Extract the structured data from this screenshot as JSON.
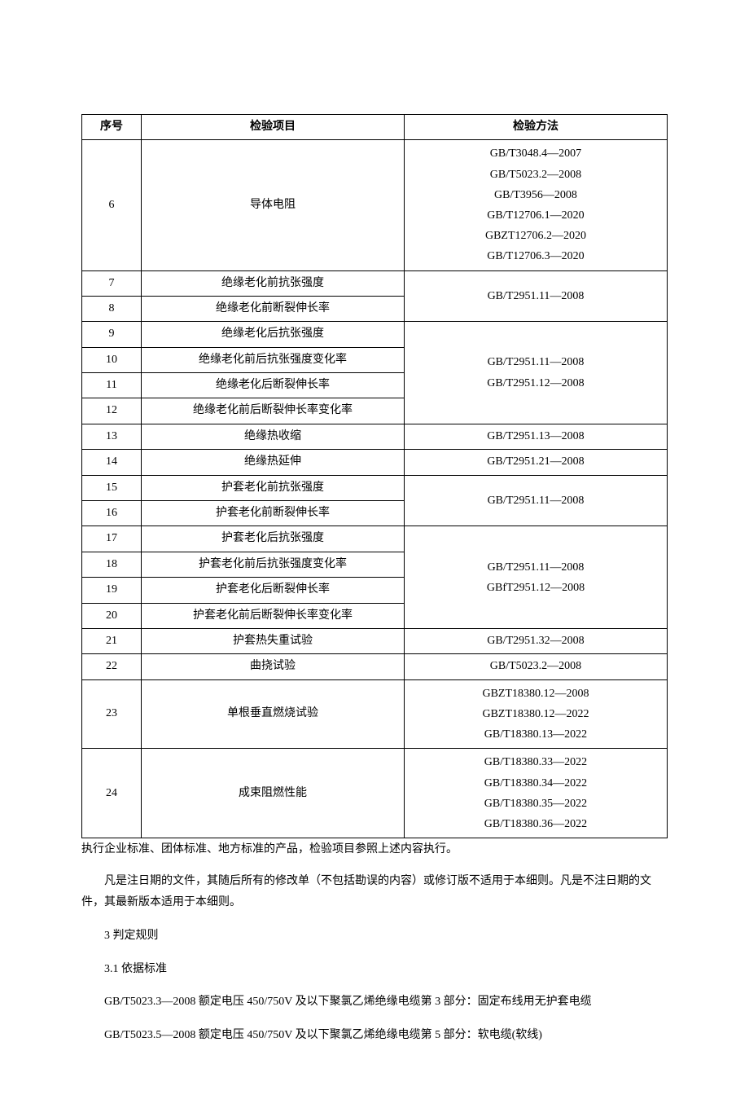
{
  "table": {
    "headers": {
      "seq": "序号",
      "item": "检验项目",
      "method": "检验方法"
    },
    "rows": [
      {
        "seq": "6",
        "item": "导体电阻",
        "methods": [
          "GB/T3048.4—2007",
          "GB/T5023.2—2008",
          "GB/T3956—2008",
          "GB/T12706.1—2020",
          "GBZT12706.2—2020",
          "GB/T12706.3—2020"
        ]
      },
      {
        "seq": "7",
        "item": "绝缘老化前抗张强度"
      },
      {
        "seq": "8",
        "item": "绝缘老化前断裂伸长率",
        "group_methods": [
          "GB/T2951.11—2008"
        ]
      },
      {
        "seq": "9",
        "item": "绝缘老化后抗张强度"
      },
      {
        "seq": "10",
        "item": "绝缘老化前后抗张强度变化率"
      },
      {
        "seq": "11",
        "item": "绝缘老化后断裂伸长率"
      },
      {
        "seq": "12",
        "item": "绝缘老化前后断裂伸长率变化率",
        "group_methods": [
          "GB/T2951.11—2008",
          "GB/T2951.12—2008"
        ]
      },
      {
        "seq": "13",
        "item": "绝缘热收缩",
        "methods": [
          "GB/T2951.13—2008"
        ]
      },
      {
        "seq": "14",
        "item": "绝缘热延伸",
        "methods": [
          "GB/T2951.21—2008"
        ]
      },
      {
        "seq": "15",
        "item": "护套老化前抗张强度"
      },
      {
        "seq": "16",
        "item": "护套老化前断裂伸长率",
        "group_methods": [
          "GB/T2951.11—2008"
        ]
      },
      {
        "seq": "17",
        "item": "护套老化后抗张强度"
      },
      {
        "seq": "18",
        "item": "护套老化前后抗张强度变化率"
      },
      {
        "seq": "19",
        "item": "护套老化后断裂伸长率"
      },
      {
        "seq": "20",
        "item": "护套老化前后断裂伸长率变化率",
        "group_methods": [
          "GB/T2951.11—2008",
          "GBfT2951.12—2008"
        ]
      },
      {
        "seq": "21",
        "item": "护套热失重试验",
        "methods": [
          "GB/T2951.32—2008"
        ]
      },
      {
        "seq": "22",
        "item": "曲挠试验",
        "methods": [
          "GB/T5023.2—2008"
        ]
      },
      {
        "seq": "23",
        "item": "单根垂直燃烧试验",
        "methods": [
          "GBZT18380.12—2008",
          "GBZT18380.12—2022",
          "GB/T18380.13—2022"
        ]
      },
      {
        "seq": "24",
        "item": "成束阻燃性能",
        "methods": [
          "GB/T18380.33—2022",
          "GB/T18380.34—2022",
          "GB/T18380.35—2022",
          "GB/T18380.36—2022"
        ]
      }
    ]
  },
  "note_after_table": "执行企业标准、团体标准、地方标准的产品，检验项目参照上述内容执行。",
  "para1": "凡是注日期的文件，其随后所有的修改单（不包括勘误的内容）或修订版不适用于本细则。凡是不注日期的文件，其最新版本适用于本细则。",
  "sec3": "3 判定规则",
  "sec3_1": "3.1  依据标准",
  "std1": "GB/T5023.3—2008 额定电压 450/750V 及以下聚氯乙烯绝缘电缆第 3 部分：固定布线用无护套电缆",
  "std2": "GB/T5023.5—2008 额定电压 450/750V 及以下聚氯乙烯绝缘电缆第 5 部分：软电缆(软线)"
}
